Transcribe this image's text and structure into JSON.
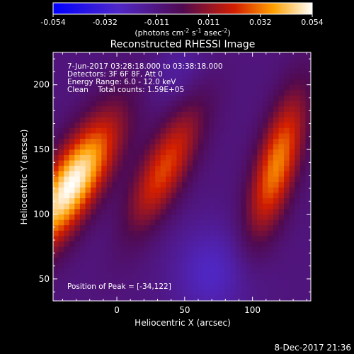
{
  "chart_data": {
    "type": "heatmap",
    "title": "Reconstructed RHESSI Image",
    "xlabel": "Heliocentric X (arcsec)",
    "ylabel": "Heliocentric Y (arcsec)",
    "xlim": [
      -47,
      143
    ],
    "ylim": [
      33,
      225
    ],
    "x_ticks": [
      0,
      50,
      100
    ],
    "y_ticks": [
      50,
      100,
      150,
      200
    ],
    "colorbar": {
      "ticks": [
        "-0.054",
        "-0.032",
        "-0.011",
        "0.011",
        "0.032",
        "0.054"
      ],
      "range": [
        -0.054,
        0.054
      ],
      "units": "(photons cm",
      "units_exp1": "-2",
      "units_mid": " s",
      "units_exp2": "-1",
      "units_mid2": " asec",
      "units_exp3": "-2",
      "units_end": ")"
    },
    "annotations": [
      "7-Jun-2017 03:28:18.000 to 03:38:18.000",
      "Detectors: 3F 6F 8F, Att 0",
      "Energy Range: 6.0 - 12.0 keV",
      "Clean    Total counts: 1.59E+05"
    ],
    "peak_label": "Position of Peak = [-34,122]",
    "sources": [
      {
        "x": -34,
        "y": 122,
        "peak": 0.054,
        "angle_deg": 60,
        "sx": 14,
        "sy": 42
      },
      {
        "x": 35,
        "y": 135,
        "peak": 0.026,
        "angle_deg": 65,
        "sx": 12,
        "sy": 38
      },
      {
        "x": 118,
        "y": 138,
        "peak": 0.034,
        "angle_deg": 75,
        "sx": 11,
        "sy": 40
      },
      {
        "x": 45,
        "y": 210,
        "peak": -0.018,
        "angle_deg": 60,
        "sx": 14,
        "sy": 20
      },
      {
        "x": 70,
        "y": 55,
        "peak": -0.026,
        "angle_deg": 0,
        "sx": 25,
        "sy": 20
      },
      {
        "x": 5,
        "y": 85,
        "peak": -0.012,
        "angle_deg": 45,
        "sx": 15,
        "sy": 20
      }
    ],
    "background": -0.01
  },
  "footer": {
    "date": "8-Dec-2017 21:36"
  }
}
